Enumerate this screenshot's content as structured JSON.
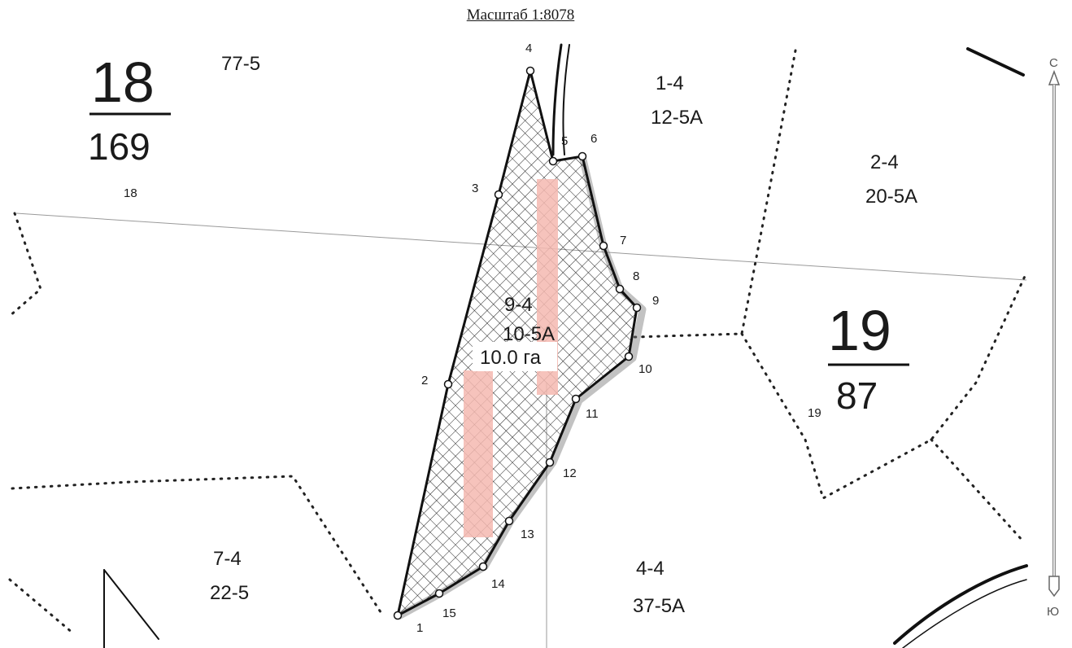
{
  "map_title": "Масштаб 1:8078",
  "quarters": [
    {
      "number": "18",
      "area": "169",
      "label": "18"
    },
    {
      "number": "19",
      "area": "87",
      "label": "19"
    }
  ],
  "divisions": [
    {
      "line1": "77-5",
      "line2": ""
    },
    {
      "line1": "1-4",
      "line2": "12-5А"
    },
    {
      "line1": "2-4",
      "line2": "20-5А"
    },
    {
      "line1": "9-4",
      "line2": "10-5А"
    },
    {
      "line1": "7-4",
      "line2": "22-5"
    },
    {
      "line1": "4-4",
      "line2": "37-5А"
    }
  ],
  "plot": {
    "area_label": "10.0 га",
    "hatch_color": "#222222",
    "stripe_color": "#f4b9b0"
  },
  "points": [
    "1",
    "2",
    "3",
    "4",
    "5",
    "6",
    "7",
    "8",
    "9",
    "10",
    "11",
    "12",
    "13",
    "14",
    "15"
  ],
  "compass": {
    "north": "С",
    "south": "Ю"
  }
}
